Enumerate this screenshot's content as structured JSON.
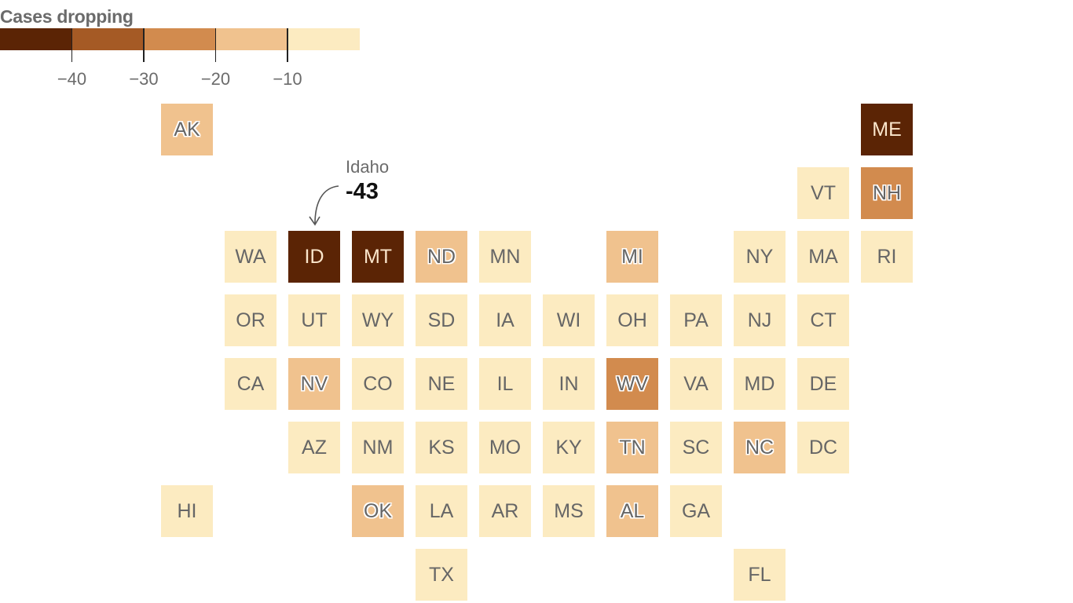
{
  "legend": {
    "title": "Cases dropping",
    "colors": [
      "#5b2405",
      "#a55a25",
      "#d28b4e",
      "#f0c28e",
      "#fcebc1"
    ],
    "tick_labels": [
      "−40",
      "−30",
      "−20",
      "−10"
    ]
  },
  "annotation": {
    "name": "Idaho",
    "value": "-43"
  },
  "chart_data": {
    "type": "heatmap",
    "title": "Cases dropping",
    "color_scale_breaks": [
      -40,
      -30,
      -20,
      -10
    ],
    "states": [
      {
        "abbr": "AK",
        "bin": 3
      },
      {
        "abbr": "ME",
        "bin": 0
      },
      {
        "abbr": "VT",
        "bin": 4
      },
      {
        "abbr": "NH",
        "bin": 2
      },
      {
        "abbr": "WA",
        "bin": 4
      },
      {
        "abbr": "ID",
        "bin": 0,
        "value": -43
      },
      {
        "abbr": "MT",
        "bin": 0
      },
      {
        "abbr": "ND",
        "bin": 3
      },
      {
        "abbr": "MN",
        "bin": 4
      },
      {
        "abbr": "MI",
        "bin": 3
      },
      {
        "abbr": "NY",
        "bin": 4
      },
      {
        "abbr": "MA",
        "bin": 4
      },
      {
        "abbr": "RI",
        "bin": 4
      },
      {
        "abbr": "OR",
        "bin": 4
      },
      {
        "abbr": "UT",
        "bin": 4
      },
      {
        "abbr": "WY",
        "bin": 4
      },
      {
        "abbr": "SD",
        "bin": 4
      },
      {
        "abbr": "IA",
        "bin": 4
      },
      {
        "abbr": "WI",
        "bin": 4
      },
      {
        "abbr": "OH",
        "bin": 4
      },
      {
        "abbr": "PA",
        "bin": 4
      },
      {
        "abbr": "NJ",
        "bin": 4
      },
      {
        "abbr": "CT",
        "bin": 4
      },
      {
        "abbr": "CA",
        "bin": 4
      },
      {
        "abbr": "NV",
        "bin": 3
      },
      {
        "abbr": "CO",
        "bin": 4
      },
      {
        "abbr": "NE",
        "bin": 4
      },
      {
        "abbr": "IL",
        "bin": 4
      },
      {
        "abbr": "IN",
        "bin": 4
      },
      {
        "abbr": "WV",
        "bin": 2
      },
      {
        "abbr": "VA",
        "bin": 4
      },
      {
        "abbr": "MD",
        "bin": 4
      },
      {
        "abbr": "DE",
        "bin": 4
      },
      {
        "abbr": "AZ",
        "bin": 4
      },
      {
        "abbr": "NM",
        "bin": 4
      },
      {
        "abbr": "KS",
        "bin": 4
      },
      {
        "abbr": "MO",
        "bin": 4
      },
      {
        "abbr": "KY",
        "bin": 4
      },
      {
        "abbr": "TN",
        "bin": 3
      },
      {
        "abbr": "SC",
        "bin": 4
      },
      {
        "abbr": "NC",
        "bin": 3
      },
      {
        "abbr": "DC",
        "bin": 4
      },
      {
        "abbr": "HI",
        "bin": 4
      },
      {
        "abbr": "OK",
        "bin": 3
      },
      {
        "abbr": "LA",
        "bin": 4
      },
      {
        "abbr": "AR",
        "bin": 4
      },
      {
        "abbr": "MS",
        "bin": 4
      },
      {
        "abbr": "AL",
        "bin": 3
      },
      {
        "abbr": "GA",
        "bin": 4
      },
      {
        "abbr": "TX",
        "bin": 4
      },
      {
        "abbr": "FL",
        "bin": 4
      }
    ]
  }
}
